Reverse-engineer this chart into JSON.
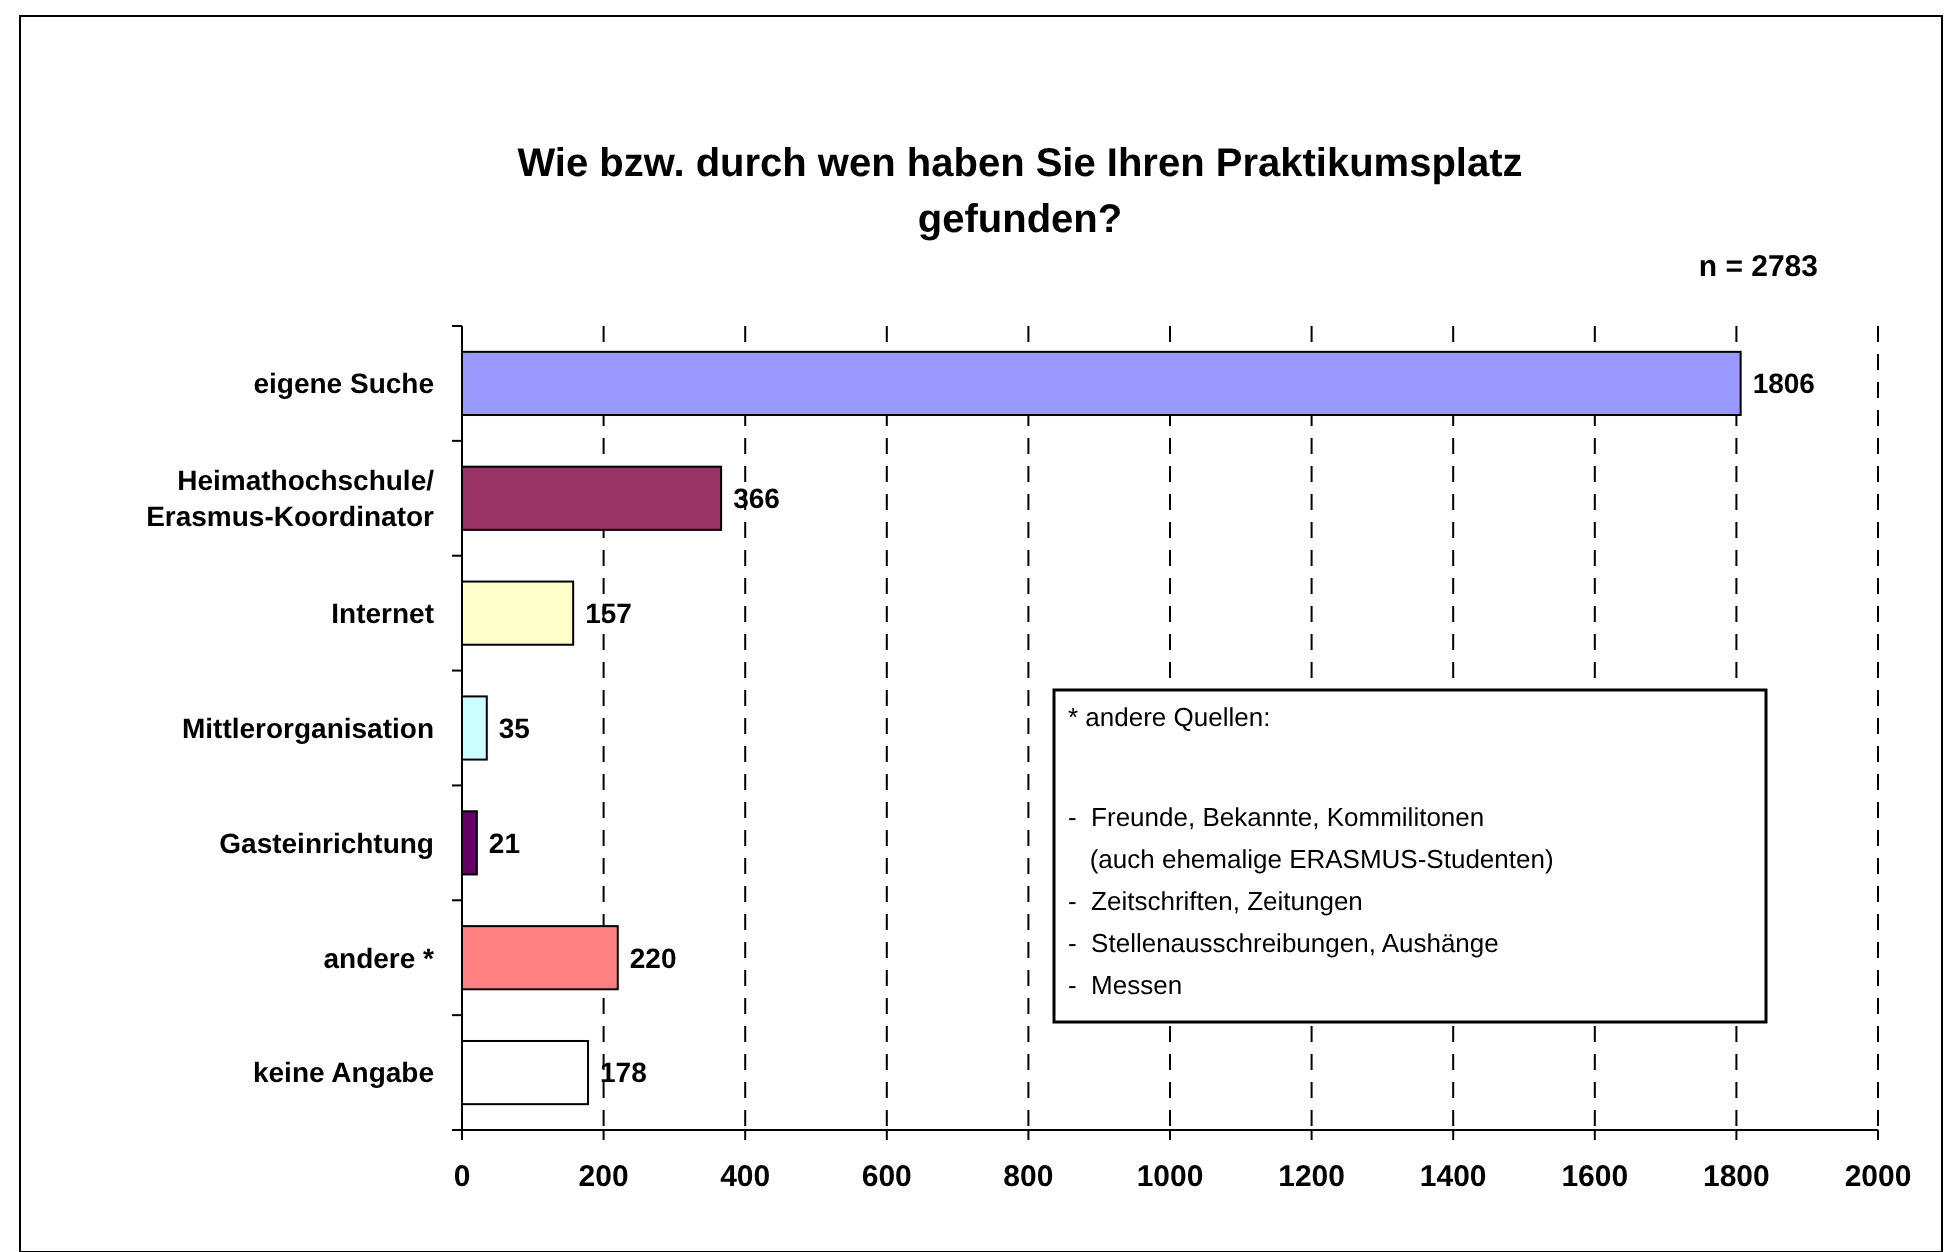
{
  "chart_data": {
    "type": "bar",
    "orientation": "horizontal",
    "title": "Wie bzw. durch wen haben Sie Ihren Praktikumsplatz\ngefunden?",
    "subtitle": "n = 2783",
    "categories": [
      "eigene Suche",
      "Heimathochschule/\nErasmus-Koordinator",
      "Internet",
      "Mittlerorganisation",
      "Gasteinrichtung",
      "andere *",
      "keine Angabe"
    ],
    "values": [
      1806,
      366,
      157,
      35,
      21,
      220,
      178
    ],
    "colors": [
      "#9999ff",
      "#993366",
      "#ffffcc",
      "#ccffff",
      "#660066",
      "#ff8080",
      "#ffffff"
    ],
    "xlim": [
      0,
      2000
    ],
    "xticks": [
      0,
      200,
      400,
      600,
      800,
      1000,
      1200,
      1400,
      1600,
      1800,
      2000
    ],
    "grid": "x",
    "data_labels": true,
    "annotations": [
      "* andere Quellen:",
      "-  Freunde, Bekannte, Kommilitonen",
      "   (auch ehemalige ERASMUS-Studenten)",
      "-  Zeitschriften, Zeitungen",
      "-  Stellenausschreibungen, Aushänge",
      "-  Messen"
    ]
  }
}
